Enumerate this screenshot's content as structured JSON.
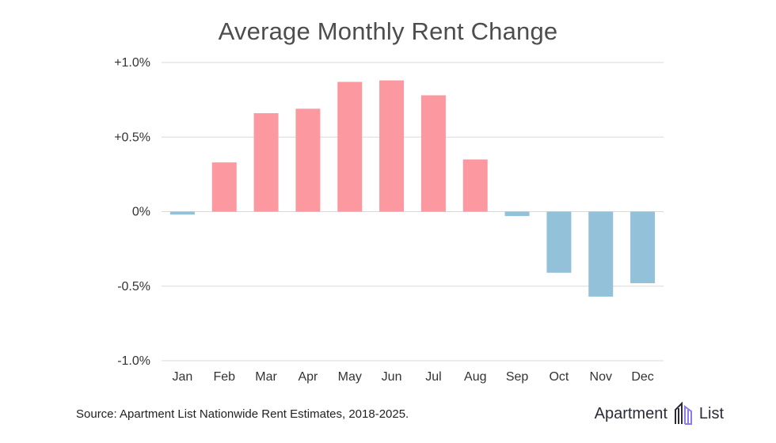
{
  "chart_data": {
    "type": "bar",
    "title": "Average Monthly Rent Change",
    "categories": [
      "Jan",
      "Feb",
      "Mar",
      "Apr",
      "May",
      "Jun",
      "Jul",
      "Aug",
      "Sep",
      "Oct",
      "Nov",
      "Dec"
    ],
    "values": [
      -0.02,
      0.33,
      0.66,
      0.69,
      0.87,
      0.88,
      0.78,
      0.35,
      -0.03,
      -0.41,
      -0.57,
      -0.48
    ],
    "unit": "%",
    "ylim": [
      -1.0,
      1.0
    ],
    "yticks": [
      1.0,
      0.5,
      0,
      -0.5,
      -1.0
    ],
    "ytick_labels": [
      "+1.0%",
      "+0.5%",
      "0%",
      "-0.5%",
      "-1.0%"
    ],
    "xlabel": "",
    "ylabel": "",
    "grid": true,
    "colors": {
      "positive": "#fb98a0",
      "negative": "#93c1da",
      "grid": "#d9d9d9"
    }
  },
  "footer": {
    "source": "Source: Apartment List Nationwide Rent Estimates, 2018-2025.",
    "brand_left": "Apartment",
    "brand_right": "List",
    "brand_icon": "apartment-list-logo-icon"
  }
}
